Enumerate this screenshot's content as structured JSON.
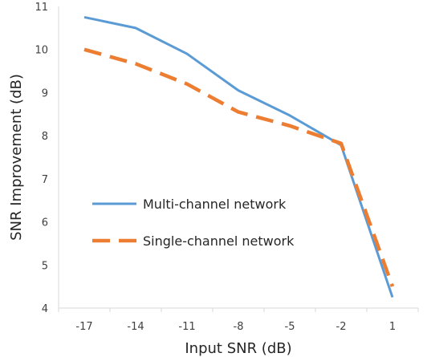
{
  "chart_data": {
    "type": "line",
    "xlabel": "Input SNR (dB)",
    "ylabel": "SNR Improvement (dB)",
    "categories": [
      "-17",
      "-14",
      "-11",
      "-8",
      "-5",
      "-2",
      "1"
    ],
    "x": [
      -17,
      -14,
      -11,
      -8,
      -5,
      -2,
      1
    ],
    "ylim": [
      4,
      11
    ],
    "yticks": [
      4,
      5,
      6,
      7,
      8,
      9,
      10,
      11
    ],
    "grid": false,
    "legend_placement": "center-left",
    "series": [
      {
        "name": "Multi-channel network",
        "style": "solid",
        "color": "#5B9BD5",
        "values": [
          10.75,
          10.5,
          9.9,
          9.05,
          8.47,
          7.78,
          4.25
        ]
      },
      {
        "name": "Single-channel network",
        "style": "dashed",
        "color": "#ED7D31",
        "values": [
          10.0,
          9.67,
          9.2,
          8.55,
          8.23,
          7.82,
          4.5
        ]
      }
    ]
  }
}
